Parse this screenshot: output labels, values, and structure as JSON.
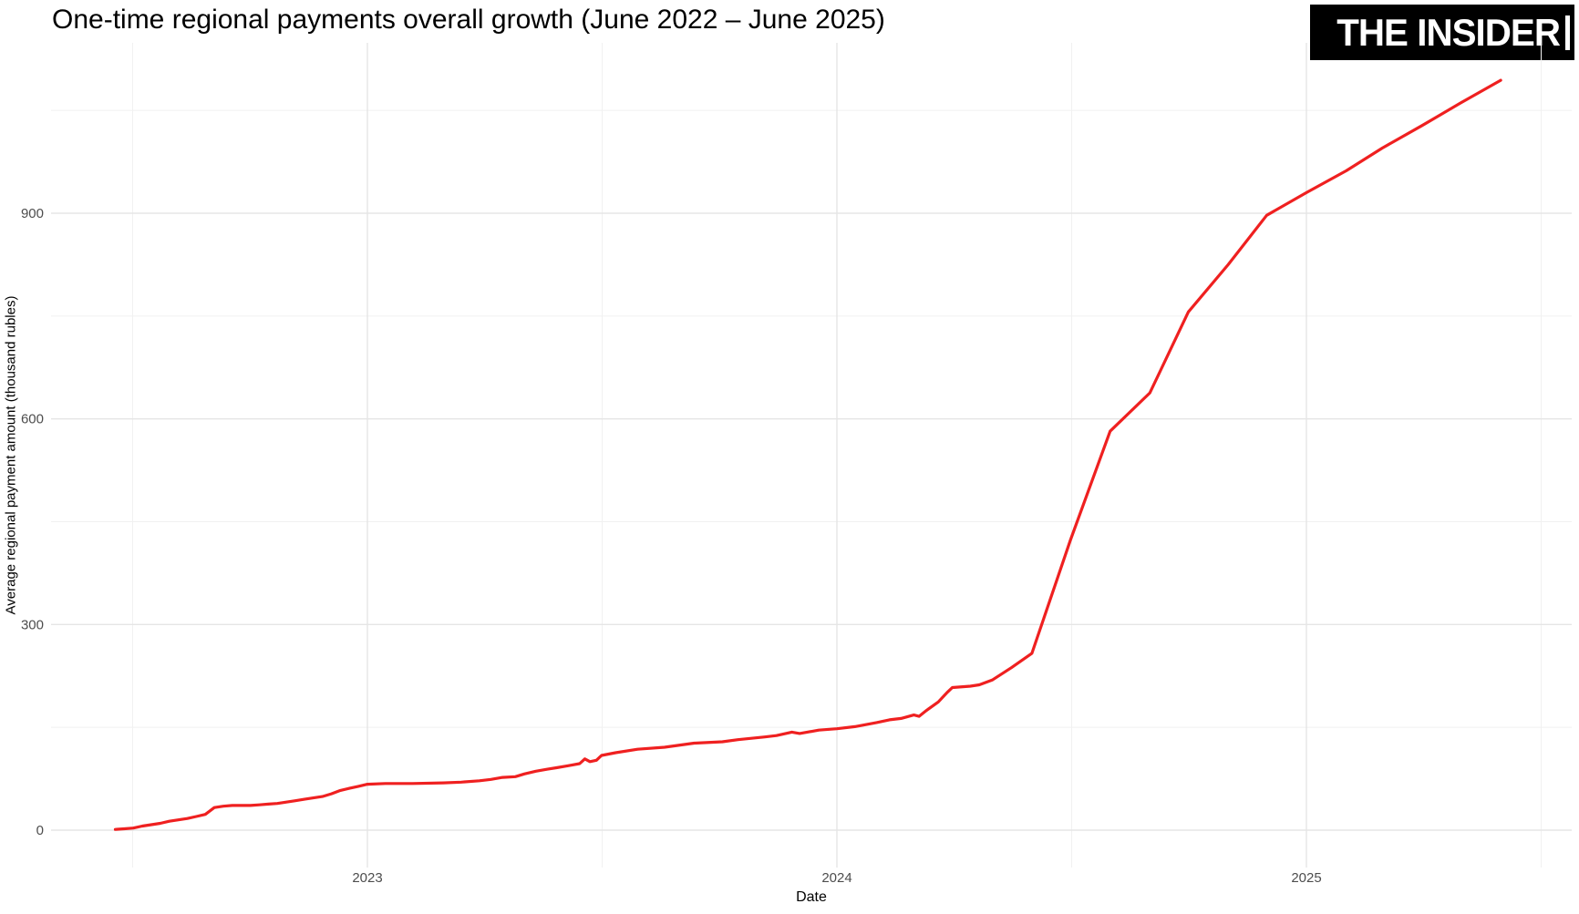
{
  "page": {
    "background_color": "#ffffff",
    "brand": {
      "text": "THE INSIDER",
      "bg_color": "#000000",
      "text_color": "#ffffff"
    }
  },
  "chart_data": {
    "type": "line",
    "title": "One-time regional payments overall growth (June 2022 – June 2025)",
    "xlabel": "Date",
    "ylabel": "Average regional payment amount (thousand rubles)",
    "grid": true,
    "legend": false,
    "line_color": "#ef2020",
    "tick_color": "#4d4d4d",
    "grid_major_color": "#e5e5e5",
    "grid_minor_color": "#f1f1f1",
    "ylim": [
      -55,
      1150
    ],
    "x_domain_years": [
      2022.42,
      2025.46
    ],
    "y_ticks": [
      {
        "label": "0",
        "value": 0
      },
      {
        "label": "300",
        "value": 300
      },
      {
        "label": "600",
        "value": 600
      },
      {
        "label": "900",
        "value": 900
      }
    ],
    "y_minor": [
      150,
      450,
      750,
      1050
    ],
    "x_ticks": [
      {
        "label": "2023",
        "year": 2023
      },
      {
        "label": "2024",
        "year": 2024
      },
      {
        "label": "2025",
        "year": 2025
      }
    ],
    "x_minor_years": [
      2022.5,
      2023.5,
      2024.5,
      2025.5
    ],
    "series": [
      {
        "name": "Average regional payment amount (thousand rubles)",
        "dates": [
          "2022-06-19",
          "2022-06-26",
          "2022-07-03",
          "2022-07-10",
          "2022-07-17",
          "2022-07-24",
          "2022-07-31",
          "2022-08-07",
          "2022-08-14",
          "2022-08-21",
          "2022-08-28",
          "2022-09-04",
          "2022-09-11",
          "2022-09-18",
          "2022-10-02",
          "2022-10-09",
          "2022-10-16",
          "2022-10-23",
          "2022-10-30",
          "2022-11-06",
          "2022-11-13",
          "2022-11-20",
          "2022-11-27",
          "2022-12-04",
          "2022-12-11",
          "2022-12-18",
          "2022-12-25",
          "2023-01-01",
          "2023-01-15",
          "2023-02-05",
          "2023-03-01",
          "2023-03-15",
          "2023-03-29",
          "2023-04-07",
          "2023-04-16",
          "2023-04-26",
          "2023-05-03",
          "2023-05-12",
          "2023-05-21",
          "2023-05-28",
          "2023-06-06",
          "2023-06-15",
          "2023-06-19",
          "2023-06-23",
          "2023-06-28",
          "2023-07-02",
          "2023-07-13",
          "2023-07-30",
          "2023-08-20",
          "2023-09-12",
          "2023-10-04",
          "2023-10-16",
          "2023-11-06",
          "2023-11-15",
          "2023-11-27",
          "2023-12-03",
          "2023-12-18",
          "2024-01-01",
          "2024-01-15",
          "2024-02-01",
          "2024-02-11",
          "2024-02-20",
          "2024-03-01",
          "2024-03-05",
          "2024-03-11",
          "2024-03-20",
          "2024-03-27",
          "2024-03-31",
          "2024-04-14",
          "2024-04-21",
          "2024-05-01",
          "2024-05-16",
          "2024-06-01",
          "2024-07-01",
          "2024-08-01",
          "2024-09-01",
          "2024-10-01",
          "2024-11-01",
          "2024-12-01",
          "2025-01-01",
          "2025-02-01",
          "2025-03-01",
          "2025-04-01",
          "2025-05-01",
          "2025-06-01"
        ],
        "values": [
          1,
          2,
          3,
          6,
          8,
          10,
          13,
          15,
          17,
          20,
          23,
          33,
          35,
          36,
          36,
          37,
          38,
          39,
          41,
          43,
          45,
          47,
          49,
          53,
          58,
          61,
          64,
          67,
          68,
          68,
          69,
          70,
          72,
          74,
          77,
          78,
          82,
          86,
          89,
          91,
          94,
          97,
          104,
          100,
          102,
          109,
          113,
          118,
          121,
          127,
          129,
          132,
          136,
          138,
          143,
          141,
          146,
          148,
          151,
          157,
          161,
          163,
          168,
          166,
          175,
          187,
          201,
          208,
          210,
          212,
          219,
          237,
          258,
          423,
          582,
          638,
          756,
          825,
          897,
          930,
          962,
          995,
          1028,
          1061,
          1094
        ]
      }
    ]
  }
}
